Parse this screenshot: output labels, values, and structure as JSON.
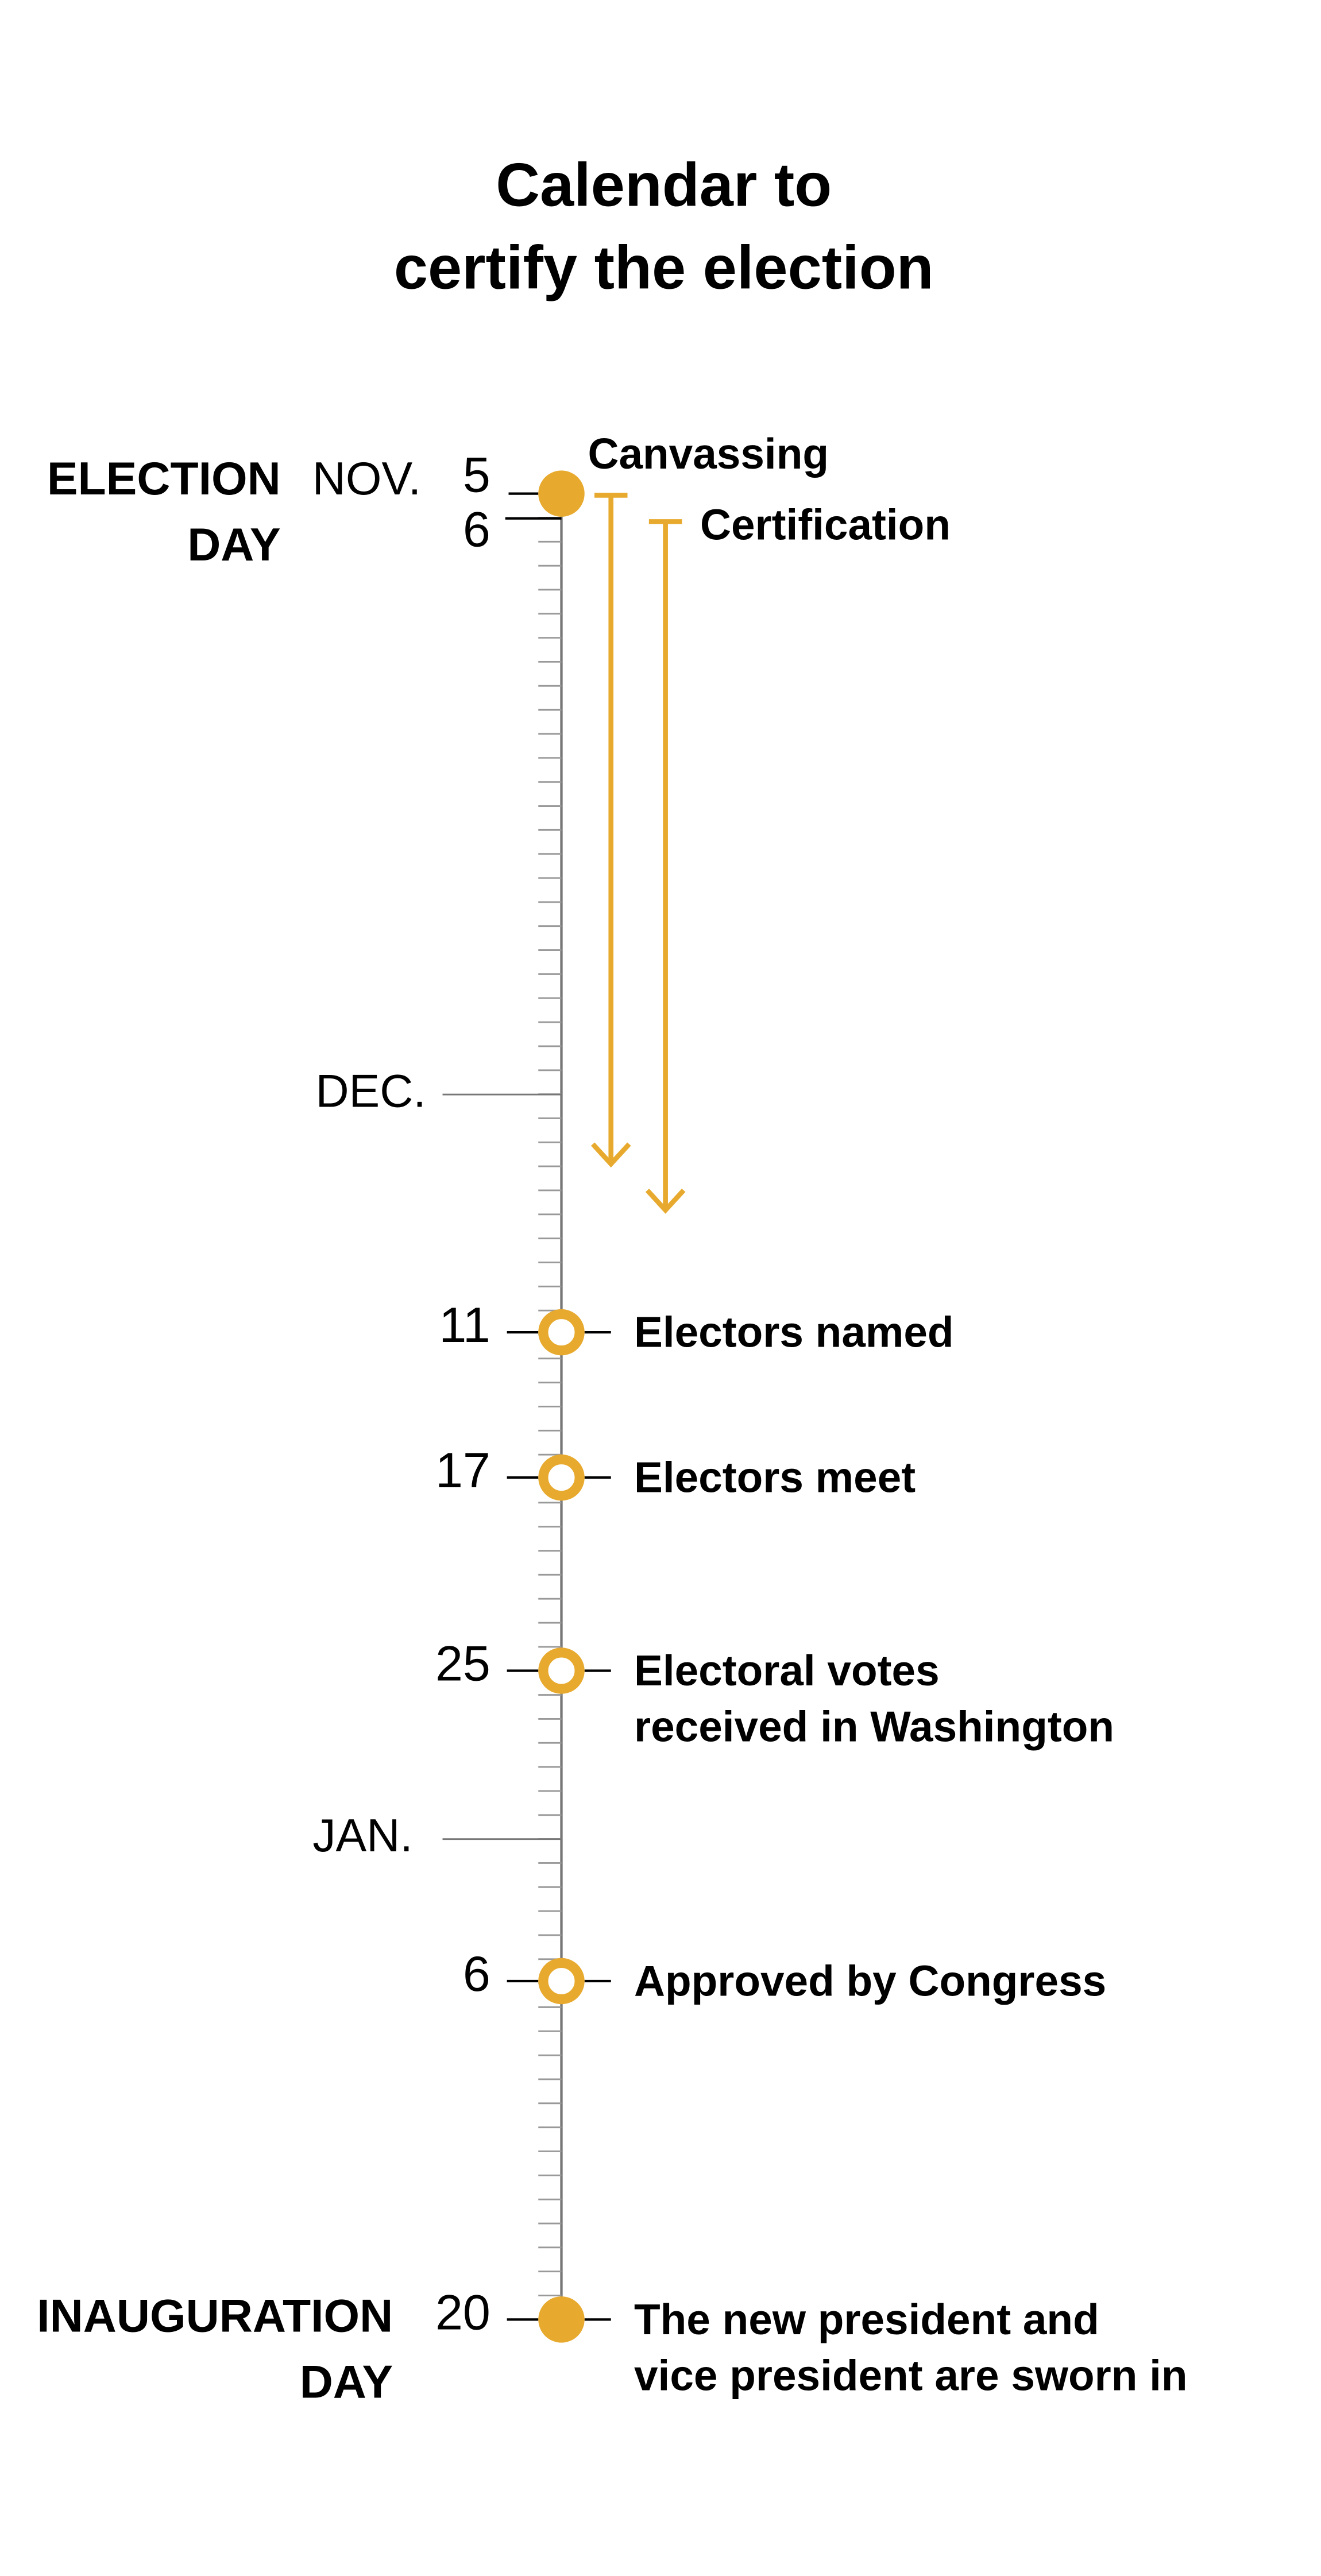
{
  "title": [
    "Calendar to",
    "certify the election"
  ],
  "start": {
    "milestone": [
      "ELECTION",
      "DAY"
    ],
    "month": "NOV.",
    "dates": [
      "5",
      "6"
    ]
  },
  "periods": [
    "Canvassing",
    "Certification"
  ],
  "months": [
    "DEC.",
    "JAN."
  ],
  "events": [
    {
      "date": "11",
      "text": [
        "Electors named"
      ]
    },
    {
      "date": "17",
      "text": [
        "Electors meet"
      ]
    },
    {
      "date": "25",
      "text": [
        "Electoral votes",
        "received in Washington"
      ]
    },
    {
      "date": "6",
      "text": [
        "Approved by Congress"
      ]
    },
    {
      "date": "20",
      "text": [
        "The new president and",
        "vice president are sworn in"
      ],
      "milestone": [
        "INAUGURATION",
        "DAY"
      ]
    }
  ]
}
